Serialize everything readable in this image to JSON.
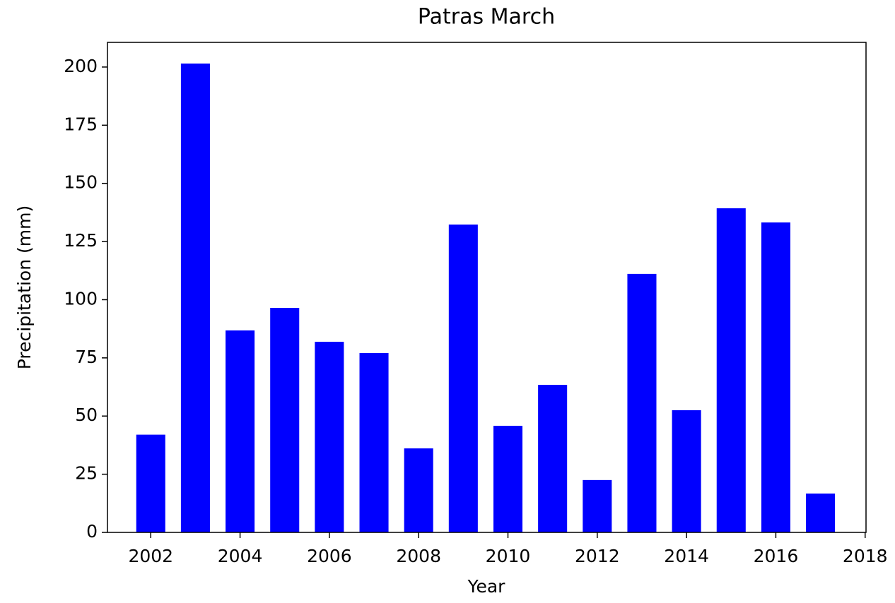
{
  "chart_data": {
    "type": "bar",
    "title": "Patras March",
    "xlabel": "Year",
    "ylabel": "Precipitation (mm)",
    "x": [
      2002,
      2003,
      2004,
      2005,
      2006,
      2007,
      2008,
      2009,
      2010,
      2011,
      2012,
      2013,
      2014,
      2015,
      2016,
      2017
    ],
    "values": [
      42,
      201.5,
      86.8,
      96.5,
      81.9,
      77.1,
      36.1,
      132.3,
      45.8,
      63.4,
      22.5,
      111.1,
      52.5,
      139.3,
      133.2,
      16.7
    ],
    "color": "#0000ff",
    "bar_width": 0.65,
    "xlim": [
      2001.03,
      2018.02
    ],
    "xticks": [
      2002,
      2004,
      2006,
      2008,
      2010,
      2012,
      2014,
      2016,
      2018
    ],
    "ylim": [
      0,
      210.6
    ],
    "yticks": [
      0,
      25,
      50,
      75,
      100,
      125,
      150,
      175,
      200
    ],
    "grid": false
  }
}
